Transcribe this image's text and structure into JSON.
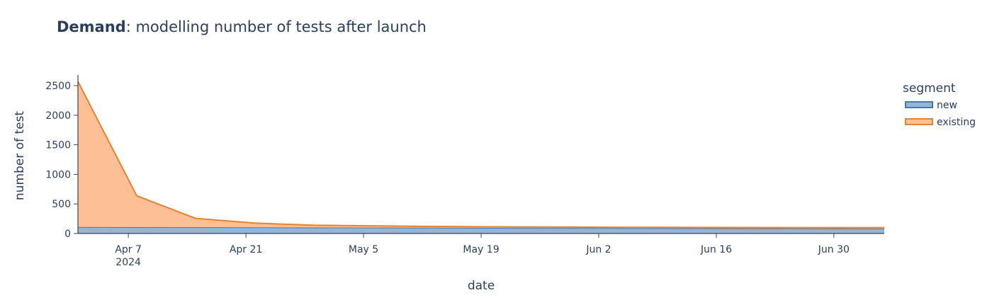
{
  "chart_data": {
    "type": "area",
    "title_bold": "Demand",
    "title_rest": ": modelling number of tests after launch",
    "xlabel": "date",
    "ylabel": "number of test",
    "legend_title": "segment",
    "legend_position": "right",
    "grid": false,
    "stacked": true,
    "xlim": [
      "2024-04-01",
      "2024-07-06"
    ],
    "ylim": [
      0,
      2680
    ],
    "y_ticks": [
      0,
      500,
      1000,
      1500,
      2000,
      2500
    ],
    "y_tick_labels": [
      "0",
      "500",
      "1000",
      "1500",
      "2000",
      "2500"
    ],
    "x_ticks": [
      "2024-04-07",
      "2024-04-21",
      "2024-05-05",
      "2024-05-19",
      "2024-06-02",
      "2024-06-16",
      "2024-06-30"
    ],
    "x_tick_labels": [
      "Apr 7",
      "Apr 21",
      "May 5",
      "May 19",
      "Jun 2",
      "Jun 16",
      "Jun 30"
    ],
    "x_tick_sublabel": "2024",
    "x": [
      "2024-04-01",
      "2024-04-08",
      "2024-04-15",
      "2024-04-22",
      "2024-04-29",
      "2024-05-06",
      "2024-05-13",
      "2024-05-20",
      "2024-05-27",
      "2024-06-03",
      "2024-06-10",
      "2024-06-17",
      "2024-06-24",
      "2024-07-01",
      "2024-07-06"
    ],
    "series": [
      {
        "name": "new",
        "color": "#92b6d8",
        "line_color": "#4c78a8",
        "values": [
          110,
          108,
          106,
          104,
          102,
          100,
          98,
          96,
          94,
          92,
          90,
          88,
          86,
          84,
          82
        ]
      },
      {
        "name": "existing",
        "color": "#fdbf95",
        "line_color": "#e8822d",
        "values": [
          2460,
          530,
          150,
          72,
          38,
          30,
          22,
          18,
          16,
          14,
          14,
          14,
          14,
          16,
          18
        ]
      }
    ]
  }
}
